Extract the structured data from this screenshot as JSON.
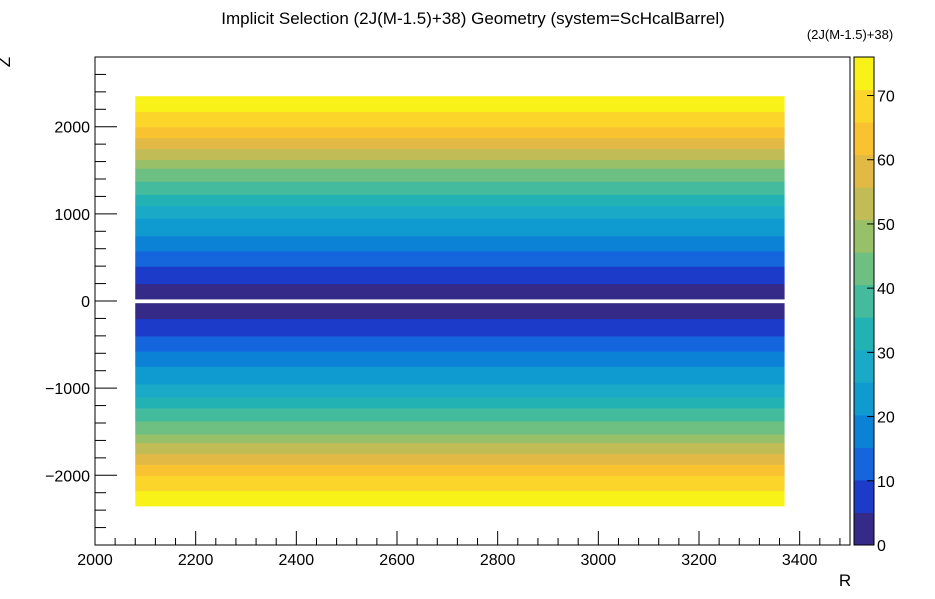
{
  "chart_data": {
    "type": "heatmap",
    "title": "Implicit Selection (2J(M-1.5)+38) Geometry (system=ScHcalBarrel)",
    "xlabel": "R",
    "ylabel": "Z",
    "xlim": [
      2000,
      3500
    ],
    "ylim": [
      -2800,
      2800
    ],
    "xticks": [
      2000,
      2200,
      2400,
      2600,
      2800,
      3000,
      3200,
      3400
    ],
    "yticks": [
      -2000,
      -1000,
      0,
      1000,
      2000
    ],
    "data_extent": {
      "r": [
        2080,
        3370
      ],
      "z": [
        -2350,
        2350
      ]
    },
    "z_gap": [
      -5,
      5
    ],
    "value_vs_z": [
      {
        "z": 0,
        "value": 0
      },
      {
        "z": 500,
        "value": 13
      },
      {
        "z": 1000,
        "value": 27
      },
      {
        "z": 1500,
        "value": 45
      },
      {
        "z": 2000,
        "value": 66
      },
      {
        "z": 2350,
        "value": 76
      }
    ],
    "colorbar": {
      "title": "(2J(M-1.5)+38)",
      "range": [
        0,
        76
      ],
      "ticks": [
        0,
        10,
        20,
        30,
        40,
        50,
        60,
        70
      ],
      "palette": [
        "#352a87",
        "#1c3bc8",
        "#1565dd",
        "#0c82d7",
        "#109bd0",
        "#1aa9c6",
        "#23b2b3",
        "#43bb9c",
        "#6dbf82",
        "#98c069",
        "#c1bc56",
        "#e2b944",
        "#f9c231",
        "#fbd52a",
        "#f9f218"
      ]
    }
  }
}
